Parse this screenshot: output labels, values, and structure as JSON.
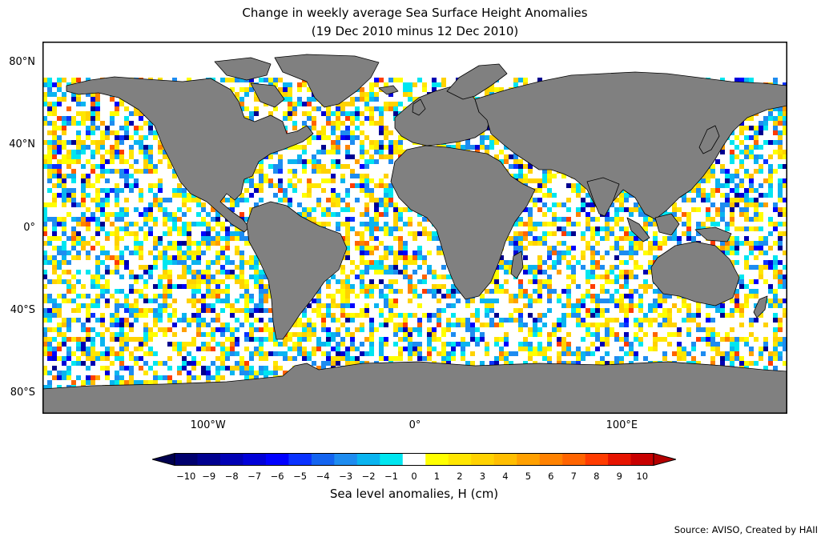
{
  "map": {
    "title": "Change in weekly average Sea Surface Height Anomalies",
    "subtitle": "(19 Dec 2010 minus 12 Dec 2010)",
    "lat_ticks": [
      {
        "label": "80°N",
        "value": 80
      },
      {
        "label": "40°N",
        "value": 40
      },
      {
        "label": "0°",
        "value": 0
      },
      {
        "label": "40°S",
        "value": -40
      },
      {
        "label": "80°S",
        "value": -80
      }
    ],
    "lon_ticks": [
      {
        "label": "100°W",
        "value": -100
      },
      {
        "label": "0°",
        "value": 0
      },
      {
        "label": "100°E",
        "value": 100
      }
    ],
    "lon_range": [
      -180,
      180
    ],
    "lat_range": [
      -90,
      90
    ],
    "colors": {
      "land": "#808080",
      "ocean": "#ffffff",
      "frame": "#000000"
    }
  },
  "colorbar": {
    "label": "Sea level anomalies, H (cm)",
    "ticks": [
      "−10",
      "−9",
      "−8",
      "−7",
      "−6",
      "−5",
      "−4",
      "−3",
      "−2",
      "−1",
      "0",
      "1",
      "2",
      "3",
      "4",
      "5",
      "6",
      "7",
      "8",
      "9",
      "10"
    ],
    "colors": [
      "#00006e",
      "#00008f",
      "#0000b4",
      "#0000d8",
      "#0000ff",
      "#0a32ff",
      "#1464f0",
      "#1e8cf0",
      "#0ab4f0",
      "#00e6f0",
      "#ffffff",
      "#ffff00",
      "#ffe600",
      "#ffd200",
      "#ffbe00",
      "#ffa000",
      "#ff8200",
      "#ff6400",
      "#ff3c00",
      "#e61400",
      "#c80000"
    ],
    "extend_low_color": "#000050",
    "extend_high_color": "#b40000"
  },
  "footer": {
    "source": "Source: AVISO, Created by HAII"
  }
}
